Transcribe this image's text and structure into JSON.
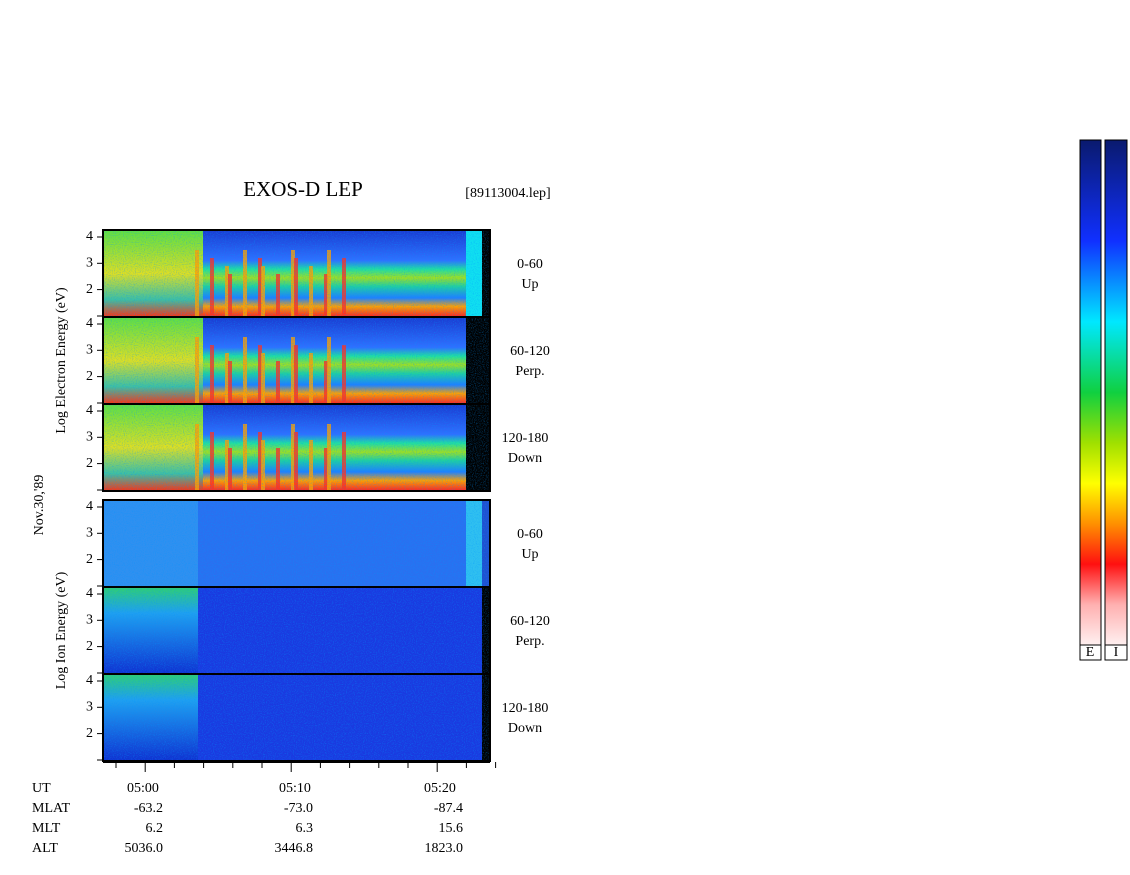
{
  "header": {
    "title": "EXOS-D LEP",
    "file": "[89113004.lep]"
  },
  "date": "Nov.30,'89",
  "yticks": [
    "2",
    "3",
    "4"
  ],
  "electron": {
    "axis_label": "Log  Electron  Energy (eV)",
    "panels": [
      {
        "angle": "0-60",
        "dir": "Up"
      },
      {
        "angle": "60-120",
        "dir": "Perp."
      },
      {
        "angle": "120-180",
        "dir": "Down"
      }
    ]
  },
  "ion": {
    "axis_label": "Log  Ion  Energy (eV)",
    "panels": [
      {
        "angle": "0-60",
        "dir": "Up"
      },
      {
        "angle": "60-120",
        "dir": "Perp."
      },
      {
        "angle": "120-180",
        "dir": "Down"
      }
    ]
  },
  "time_labels": [
    "05:00",
    "05:10",
    "05:20"
  ],
  "orbit": {
    "labels": [
      "UT",
      "MLAT",
      "MLT",
      "ALT"
    ],
    "rows": [
      [
        "-63.2",
        "-73.0",
        "-87.4"
      ],
      [
        "6.2",
        "6.3",
        "15.6"
      ],
      [
        "5036.0",
        "3446.8",
        "1823.0"
      ]
    ]
  },
  "colorbars": [
    "E",
    "I"
  ]
}
